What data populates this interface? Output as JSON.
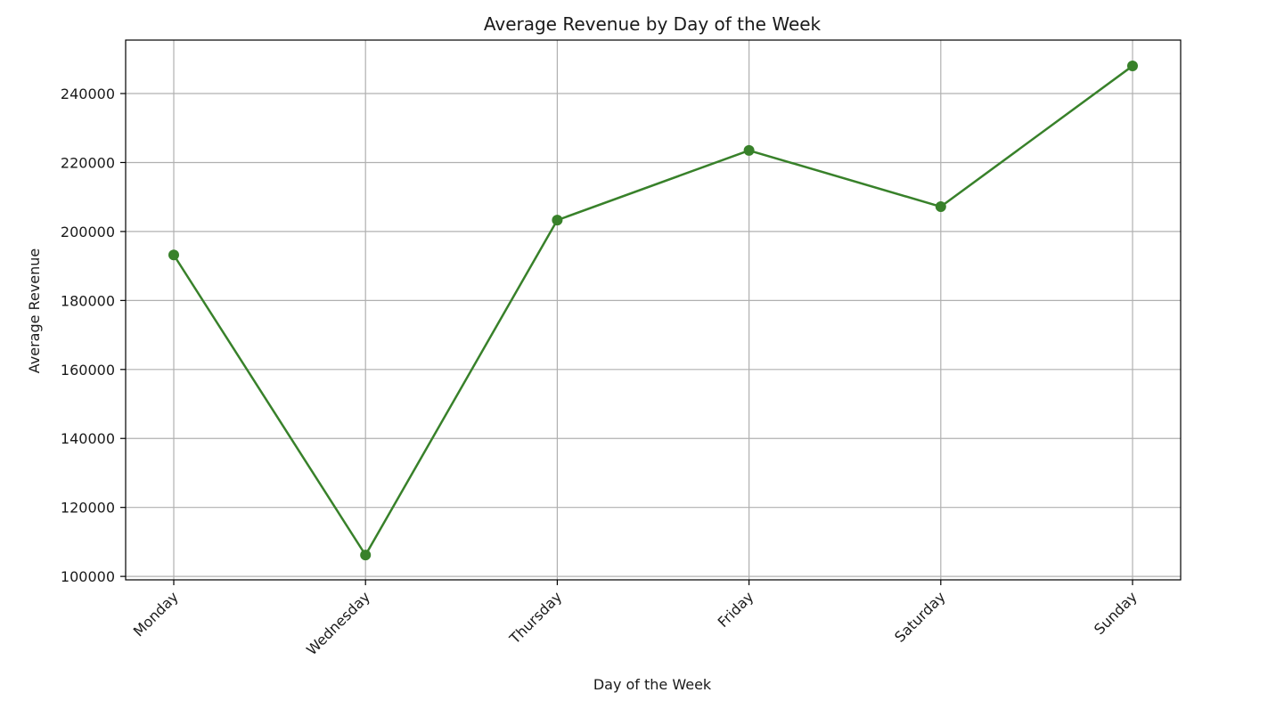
{
  "chart_data": {
    "type": "line",
    "title": "Average Revenue by Day of the Week",
    "xlabel": "Day of the Week",
    "ylabel": "Average Revenue",
    "categories": [
      "Monday",
      "Wednesday",
      "Thursday",
      "Friday",
      "Saturday",
      "Sunday"
    ],
    "series": [
      {
        "values": [
          193200,
          106200,
          203300,
          223500,
          207200,
          248000
        ],
        "color": "#38812a",
        "marker": "circle"
      }
    ],
    "yticks": [
      100000,
      120000,
      140000,
      160000,
      180000,
      200000,
      220000,
      240000
    ],
    "ylim": [
      99000,
      255500
    ],
    "grid": true,
    "legend": "none"
  }
}
